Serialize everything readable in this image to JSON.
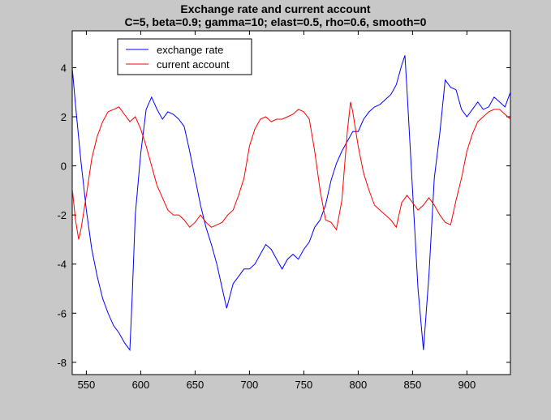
{
  "chart_data": {
    "type": "line",
    "title": "Exchange rate and current account",
    "subtitle": "C=5, beta=0.9; gamma=10; elast=0.5, rho=0.6, smooth=0",
    "xlabel": "",
    "ylabel": "",
    "xlim": [
      537,
      940
    ],
    "ylim": [
      -8.5,
      5.5
    ],
    "xticks": [
      550,
      600,
      650,
      700,
      750,
      800,
      850,
      900
    ],
    "yticks": [
      -8,
      -6,
      -4,
      -2,
      0,
      2,
      4
    ],
    "grid": false,
    "legend_position": "top-left",
    "colors": {
      "plot_bg": "#ffffff",
      "figure_bg": "#c8c8c8",
      "axes": "#000000"
    },
    "series": [
      {
        "name": "exchange rate",
        "color": "#0000ff",
        "x": [
          537,
          540,
          545,
          550,
          555,
          560,
          565,
          570,
          575,
          580,
          585,
          590,
          592,
          595,
          600,
          605,
          610,
          615,
          620,
          625,
          630,
          635,
          640,
          645,
          650,
          655,
          660,
          665,
          670,
          675,
          679,
          682,
          685,
          690,
          695,
          700,
          705,
          710,
          715,
          720,
          725,
          730,
          735,
          740,
          745,
          750,
          755,
          760,
          765,
          770,
          775,
          780,
          785,
          790,
          795,
          800,
          805,
          810,
          815,
          820,
          825,
          830,
          835,
          840,
          843,
          845,
          850,
          855,
          860,
          865,
          870,
          875,
          880,
          885,
          890,
          895,
          900,
          905,
          910,
          915,
          920,
          925,
          930,
          935,
          940
        ],
        "y": [
          4.0,
          2.5,
          0.2,
          -1.8,
          -3.4,
          -4.5,
          -5.4,
          -6.0,
          -6.5,
          -6.8,
          -7.2,
          -7.5,
          -5.5,
          -2.0,
          0.5,
          2.3,
          2.8,
          2.3,
          1.9,
          2.2,
          2.1,
          1.9,
          1.6,
          0.6,
          -0.5,
          -1.6,
          -2.5,
          -3.2,
          -4.0,
          -5.0,
          -5.8,
          -5.3,
          -4.8,
          -4.5,
          -4.2,
          -4.2,
          -4.0,
          -3.6,
          -3.2,
          -3.4,
          -3.8,
          -4.2,
          -3.8,
          -3.6,
          -3.8,
          -3.4,
          -3.1,
          -2.5,
          -2.2,
          -1.6,
          -0.6,
          0.1,
          0.6,
          1.0,
          1.4,
          1.4,
          1.9,
          2.2,
          2.4,
          2.5,
          2.7,
          2.9,
          3.3,
          4.1,
          4.5,
          3.0,
          -1.0,
          -5.0,
          -7.5,
          -4.5,
          -0.5,
          1.3,
          3.5,
          3.2,
          3.1,
          2.3,
          2.0,
          2.3,
          2.6,
          2.3,
          2.4,
          2.8,
          2.6,
          2.4,
          3.0
        ]
      },
      {
        "name": "current account",
        "color": "#ff0000",
        "x": [
          537,
          540,
          543,
          545,
          550,
          555,
          560,
          565,
          570,
          575,
          580,
          585,
          590,
          595,
          600,
          605,
          610,
          615,
          620,
          625,
          630,
          635,
          640,
          645,
          650,
          655,
          660,
          665,
          670,
          675,
          680,
          685,
          690,
          695,
          700,
          705,
          710,
          715,
          720,
          725,
          730,
          735,
          740,
          745,
          750,
          755,
          760,
          765,
          770,
          775,
          780,
          785,
          790,
          793,
          795,
          800,
          805,
          810,
          815,
          820,
          825,
          830,
          835,
          840,
          845,
          850,
          855,
          860,
          865,
          870,
          875,
          880,
          885,
          890,
          895,
          900,
          905,
          910,
          915,
          920,
          925,
          930,
          935,
          940
        ],
        "y": [
          -0.9,
          -2.2,
          -3.0,
          -2.6,
          -1.2,
          0.3,
          1.2,
          1.8,
          2.2,
          2.3,
          2.4,
          2.1,
          1.8,
          2.0,
          1.5,
          0.8,
          0.0,
          -0.8,
          -1.3,
          -1.8,
          -2.0,
          -2.0,
          -2.2,
          -2.5,
          -2.3,
          -2.0,
          -2.3,
          -2.5,
          -2.4,
          -2.3,
          -2.0,
          -1.8,
          -1.2,
          -0.5,
          0.8,
          1.5,
          1.9,
          2.0,
          1.8,
          1.9,
          1.9,
          2.0,
          2.1,
          2.3,
          2.2,
          1.9,
          0.6,
          -1.0,
          -2.2,
          -2.3,
          -2.6,
          -1.4,
          1.4,
          2.6,
          2.2,
          0.8,
          -0.3,
          -1.0,
          -1.6,
          -1.8,
          -2.0,
          -2.2,
          -2.5,
          -1.5,
          -1.2,
          -1.5,
          -1.8,
          -1.6,
          -1.3,
          -1.6,
          -2.0,
          -2.3,
          -2.4,
          -1.4,
          -0.5,
          0.6,
          1.3,
          1.8,
          2.0,
          2.2,
          2.3,
          2.3,
          2.1,
          1.9
        ]
      }
    ]
  }
}
